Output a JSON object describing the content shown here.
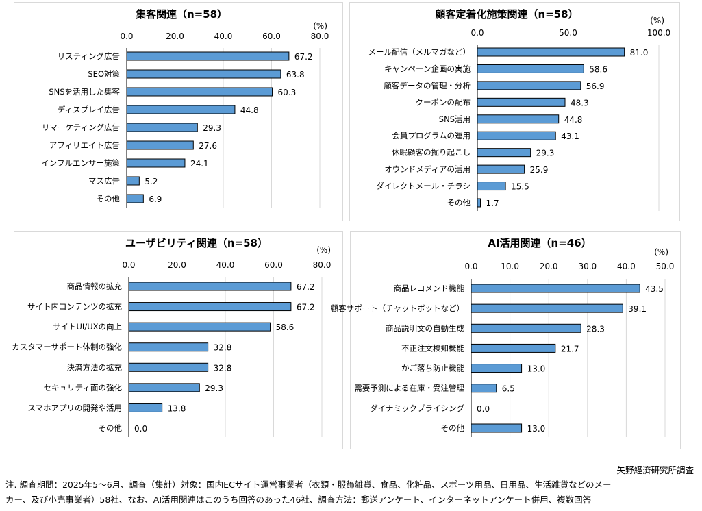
{
  "chart_data": [
    {
      "type": "bar",
      "orientation": "horizontal",
      "title": "集客関連（n=58）",
      "unit_label": "(%)",
      "xlim": [
        0,
        80
      ],
      "ticks": [
        "0.0",
        "20.0",
        "40.0",
        "60.0",
        "80.0"
      ],
      "grid": true,
      "categories": [
        "リスティング広告",
        "SEO対策",
        "SNSを活用した集客",
        "ディスプレイ広告",
        "リマーケティング広告",
        "アフィリエイト広告",
        "インフルエンサー施策",
        "マス広告",
        "その他"
      ],
      "values": [
        67.2,
        63.8,
        60.3,
        44.8,
        29.3,
        27.6,
        24.1,
        5.2,
        6.9
      ]
    },
    {
      "type": "bar",
      "orientation": "horizontal",
      "title": "顧客定着化施策関連（n=58）",
      "unit_label": "(%)",
      "xlim": [
        0,
        100
      ],
      "ticks": [
        "0.0",
        "50.0",
        "100.0"
      ],
      "grid": true,
      "categories": [
        "メール配信（メルマガなど）",
        "キャンペーン企画の実施",
        "顧客データの管理・分析",
        "クーポンの配布",
        "SNS活用",
        "会員プログラムの運用",
        "休眠顧客の掘り起こし",
        "オウンドメディアの活用",
        "ダイレクトメール・チラシ",
        "その他"
      ],
      "values": [
        81.0,
        58.6,
        56.9,
        48.3,
        44.8,
        43.1,
        29.3,
        25.9,
        15.5,
        1.7
      ]
    },
    {
      "type": "bar",
      "orientation": "horizontal",
      "title": "ユーザビリティ関連（n=58）",
      "unit_label": "(%)",
      "xlim": [
        0,
        80
      ],
      "ticks": [
        "0.0",
        "20.0",
        "40.0",
        "60.0",
        "80.0"
      ],
      "grid": true,
      "categories": [
        "商品情報の拡充",
        "サイト内コンテンツの拡充",
        "サイトUI/UXの向上",
        "カスタマーサポート体制の強化",
        "決済方法の拡充",
        "セキュリティ面の強化",
        "スマホアプリの開発や活用",
        "その他"
      ],
      "values": [
        67.2,
        67.2,
        58.6,
        32.8,
        32.8,
        29.3,
        13.8,
        0.0
      ]
    },
    {
      "type": "bar",
      "orientation": "horizontal",
      "title": "AI活用関連（n=46）",
      "unit_label": "(%)",
      "xlim": [
        0,
        50
      ],
      "ticks": [
        "0.0",
        "10.0",
        "20.0",
        "30.0",
        "40.0",
        "50.0"
      ],
      "grid": true,
      "categories": [
        "商品レコメンド機能",
        "顧客サポート（チャットボットなど）",
        "商品説明文の自動生成",
        "不正注文検知機能",
        "かご落ち防止機能",
        "需要予測による在庫・受注管理",
        "ダイナミックプライシング",
        "その他"
      ],
      "values": [
        43.5,
        39.1,
        28.3,
        21.7,
        13.0,
        6.5,
        0.0,
        13.0
      ]
    }
  ],
  "colors": {
    "bar_fill": "#5b9bd5",
    "bar_stroke": "#000000",
    "grid": "#d9d9d9",
    "panel_border": "#d9d9d9"
  },
  "source": "矢野経済研究所調査",
  "notes": [
    "注. 調査期間：2025年5～6月、調査（集計）対象：国内ECサイト運営事業者（衣類・服飾雑貨、食品、化粧品、スポーツ用品、日用品、生活雑貨などのメー",
    "カー、及び小売事業者）58社、なお、AI活用関連はこのうち回答のあった46社、調査方法：郵送アンケート、インターネットアンケート併用、複数回答"
  ]
}
